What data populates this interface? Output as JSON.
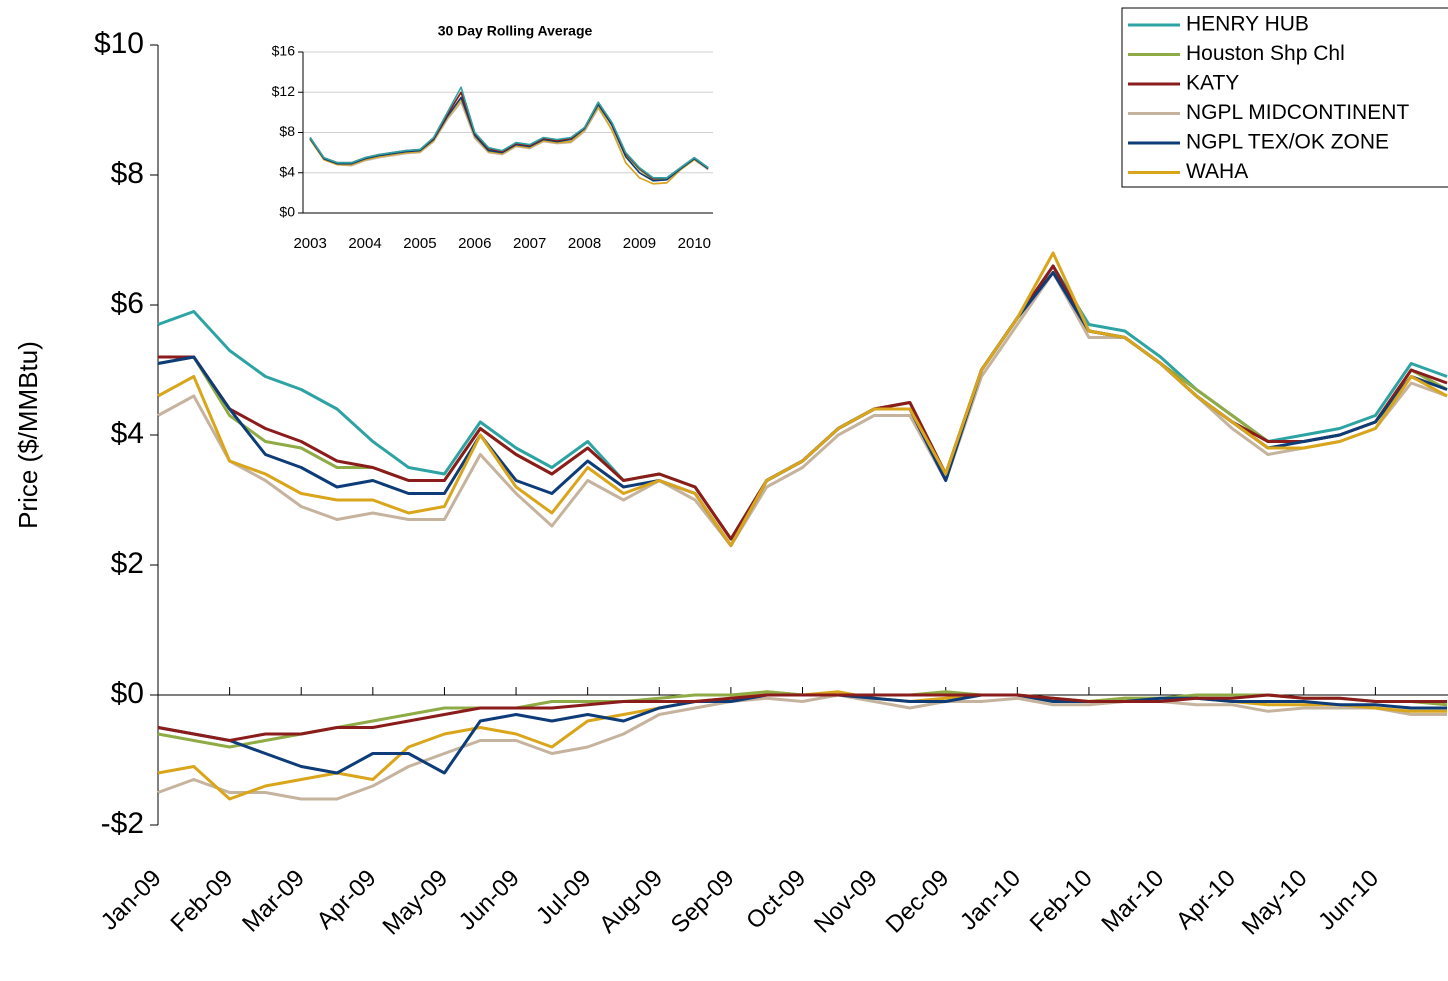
{
  "chart_data": [
    {
      "type": "line",
      "ylabel": "Price ($/MMBtu)",
      "categories": [
        "Jan-09",
        null,
        "Feb-09",
        null,
        "Mar-09",
        null,
        "Apr-09",
        null,
        "May-09",
        null,
        "Jun-09",
        null,
        "Jul-09",
        null,
        "Aug-09",
        null,
        "Sep-09",
        null,
        "Oct-09",
        null,
        "Nov-09",
        null,
        "Dec-09",
        null,
        "Jan-10",
        null,
        "Feb-10",
        null,
        "Mar-10",
        null,
        "Apr-10",
        null,
        "May-10",
        null,
        "Jun-10",
        null,
        null
      ],
      "ylim": [
        -2,
        10
      ],
      "yticks": [
        {
          "value": -2,
          "label": "-$2"
        },
        {
          "value": 0,
          "label": "$0"
        },
        {
          "value": 2,
          "label": "$2"
        },
        {
          "value": 4,
          "label": "$4"
        },
        {
          "value": 6,
          "label": "$6"
        },
        {
          "value": 8,
          "label": "$8"
        },
        {
          "value": 10,
          "label": "$10"
        }
      ],
      "legend": "upper right",
      "series": [
        {
          "name": "HENRY HUB",
          "color": "#2ea3a3",
          "values": [
            5.7,
            5.9,
            5.3,
            4.9,
            4.7,
            4.4,
            3.9,
            3.5,
            3.4,
            4.2,
            3.8,
            3.5,
            3.9,
            3.3,
            3.4,
            3.2,
            2.4,
            3.3,
            3.6,
            4.1,
            4.4,
            4.5,
            3.4,
            5.0,
            5.8,
            6.6,
            5.7,
            5.6,
            5.2,
            4.7,
            4.3,
            3.9,
            4.0,
            4.1,
            4.3,
            5.1,
            4.9
          ]
        },
        {
          "name": "Houston Shp Chl",
          "color": "#8fab45",
          "values": [
            5.1,
            5.2,
            4.3,
            3.9,
            3.8,
            3.5,
            3.5,
            3.3,
            3.3,
            4.1,
            3.7,
            3.4,
            3.8,
            3.3,
            3.4,
            3.2,
            2.4,
            3.3,
            3.6,
            4.1,
            4.4,
            4.5,
            3.4,
            5.0,
            5.8,
            6.5,
            5.6,
            5.5,
            5.1,
            4.7,
            4.3,
            3.9,
            3.9,
            4.0,
            4.2,
            5.0,
            4.7
          ]
        },
        {
          "name": "KATY",
          "color": "#8b1c1c",
          "values": [
            5.2,
            5.2,
            4.4,
            4.1,
            3.9,
            3.6,
            3.5,
            3.3,
            3.3,
            4.1,
            3.7,
            3.4,
            3.8,
            3.3,
            3.4,
            3.2,
            2.4,
            3.3,
            3.6,
            4.1,
            4.4,
            4.5,
            3.4,
            5.0,
            5.8,
            6.6,
            5.6,
            5.5,
            5.1,
            4.6,
            4.2,
            3.9,
            3.9,
            4.0,
            4.2,
            5.0,
            4.8
          ]
        },
        {
          "name": "NGPL MIDCONTINENT",
          "color": "#c5b39e",
          "values": [
            4.3,
            4.6,
            3.6,
            3.3,
            2.9,
            2.7,
            2.8,
            2.7,
            2.7,
            3.7,
            3.1,
            2.6,
            3.3,
            3.0,
            3.3,
            3.0,
            2.3,
            3.2,
            3.5,
            4.0,
            4.3,
            4.3,
            3.3,
            4.9,
            5.7,
            6.5,
            5.5,
            5.5,
            5.1,
            4.6,
            4.1,
            3.7,
            3.8,
            3.9,
            4.1,
            4.8,
            4.6
          ]
        },
        {
          "name": "NGPL TEX/OK ZONE",
          "color": "#0d3c78",
          "values": [
            5.1,
            5.2,
            4.4,
            3.7,
            3.5,
            3.2,
            3.3,
            3.1,
            3.1,
            4.0,
            3.3,
            3.1,
            3.6,
            3.2,
            3.3,
            3.1,
            2.3,
            3.3,
            3.6,
            4.1,
            4.4,
            4.4,
            3.3,
            5.0,
            5.8,
            6.5,
            5.6,
            5.5,
            5.1,
            4.6,
            4.2,
            3.8,
            3.9,
            4.0,
            4.2,
            4.9,
            4.7
          ]
        },
        {
          "name": "WAHA",
          "color": "#d9a51a",
          "values": [
            4.6,
            4.9,
            3.6,
            3.4,
            3.1,
            3.0,
            3.0,
            2.8,
            2.9,
            4.0,
            3.2,
            2.8,
            3.5,
            3.1,
            3.3,
            3.1,
            2.3,
            3.3,
            3.6,
            4.1,
            4.4,
            4.4,
            3.4,
            5.0,
            5.8,
            6.8,
            5.6,
            5.5,
            5.1,
            4.6,
            4.2,
            3.8,
            3.8,
            3.9,
            4.1,
            4.9,
            4.6
          ]
        }
      ],
      "basis_series": [
        {
          "color": "#c5b39e",
          "values": [
            -1.5,
            -1.3,
            -1.5,
            -1.5,
            -1.6,
            -1.6,
            -1.4,
            -1.1,
            -0.9,
            -0.7,
            -0.7,
            -0.9,
            -0.8,
            -0.6,
            -0.3,
            -0.2,
            -0.1,
            -0.05,
            -0.1,
            0,
            -0.1,
            -0.2,
            -0.1,
            -0.1,
            -0.05,
            -0.15,
            -0.15,
            -0.1,
            -0.1,
            -0.15,
            -0.15,
            -0.25,
            -0.2,
            -0.2,
            -0.2,
            -0.3,
            -0.3
          ]
        },
        {
          "color": "#d9a51a",
          "values": [
            -1.2,
            -1.1,
            -1.6,
            -1.4,
            -1.3,
            -1.2,
            -1.3,
            -0.8,
            -0.6,
            -0.5,
            -0.6,
            -0.8,
            -0.4,
            -0.3,
            -0.2,
            -0.1,
            -0.05,
            0.05,
            0,
            0.05,
            -0.05,
            -0.1,
            -0.05,
            0,
            0,
            -0.1,
            -0.1,
            -0.05,
            -0.05,
            -0.05,
            -0.1,
            -0.15,
            -0.15,
            -0.15,
            -0.2,
            -0.25,
            -0.25
          ]
        },
        {
          "color": "#8fab45",
          "values": [
            -0.6,
            -0.7,
            -0.8,
            -0.7,
            -0.6,
            -0.5,
            -0.4,
            -0.3,
            -0.2,
            -0.2,
            -0.2,
            -0.1,
            -0.1,
            -0.1,
            -0.05,
            0,
            0,
            0.05,
            0,
            0,
            0,
            0,
            0.05,
            0,
            0,
            -0.05,
            -0.1,
            -0.05,
            -0.05,
            0,
            0,
            0,
            -0.05,
            -0.05,
            -0.1,
            -0.1,
            -0.15
          ]
        },
        {
          "color": "#0d3c78",
          "values": [
            -0.5,
            -0.6,
            -0.7,
            -0.9,
            -1.1,
            -1.2,
            -0.9,
            -0.9,
            -1.2,
            -0.4,
            -0.3,
            -0.4,
            -0.3,
            -0.4,
            -0.2,
            -0.1,
            -0.1,
            0,
            0,
            0,
            -0.05,
            -0.1,
            -0.1,
            0,
            0,
            -0.1,
            -0.1,
            -0.1,
            -0.05,
            -0.05,
            -0.1,
            -0.1,
            -0.1,
            -0.15,
            -0.15,
            -0.2,
            -0.2
          ]
        },
        {
          "color": "#8b1c1c",
          "values": [
            -0.5,
            -0.6,
            -0.7,
            -0.6,
            -0.6,
            -0.5,
            -0.5,
            -0.4,
            -0.3,
            -0.2,
            -0.2,
            -0.2,
            -0.15,
            -0.1,
            -0.1,
            -0.1,
            -0.05,
            0,
            0,
            0,
            0,
            0,
            0,
            0,
            0,
            -0.05,
            -0.1,
            -0.1,
            -0.1,
            -0.05,
            -0.05,
            0,
            -0.05,
            -0.05,
            -0.1,
            -0.1,
            -0.1
          ]
        }
      ]
    },
    {
      "type": "line",
      "title": "30 Day Rolling Average",
      "x": [
        2003,
        2003.25,
        2003.5,
        2003.75,
        2004,
        2004.25,
        2004.5,
        2004.75,
        2005,
        2005.25,
        2005.5,
        2005.75,
        2006,
        2006.25,
        2006.5,
        2006.75,
        2007,
        2007.25,
        2007.5,
        2007.75,
        2008,
        2008.25,
        2008.5,
        2008.75,
        2009,
        2009.25,
        2009.5,
        2009.75,
        2010,
        2010.25
      ],
      "xlim": [
        2002.87,
        2010.34
      ],
      "xticks": [
        2003,
        2004,
        2005,
        2006,
        2007,
        2008,
        2009,
        2010
      ],
      "ylim": [
        0,
        16
      ],
      "yticks": [
        {
          "value": 0,
          "label": "$0"
        },
        {
          "value": 4,
          "label": "$4"
        },
        {
          "value": 8,
          "label": "$8"
        },
        {
          "value": 12,
          "label": "$12"
        },
        {
          "value": 16,
          "label": "$16"
        }
      ],
      "grid": true,
      "series": [
        {
          "color": "#c5b39e",
          "values": [
            7.3,
            5.3,
            4.8,
            4.7,
            5.2,
            5.5,
            5.7,
            5.9,
            6.0,
            7.1,
            9.3,
            11.0,
            7.4,
            6.0,
            5.8,
            6.6,
            6.4,
            7.1,
            6.9,
            7.0,
            8.1,
            10.4,
            8.3,
            5.0,
            3.5,
            2.9,
            3.0,
            4.3,
            5.3,
            4.3
          ]
        },
        {
          "color": "#d9a51a",
          "values": [
            7.3,
            5.3,
            4.8,
            4.8,
            5.3,
            5.6,
            5.8,
            6.0,
            6.1,
            7.2,
            9.5,
            11.3,
            7.6,
            6.1,
            5.9,
            6.7,
            6.5,
            7.2,
            7.0,
            7.1,
            8.3,
            10.6,
            8.2,
            5.0,
            3.5,
            2.9,
            3.0,
            4.3,
            5.3,
            4.4
          ]
        },
        {
          "color": "#8fab45",
          "values": [
            7.4,
            5.4,
            4.9,
            4.9,
            5.4,
            5.7,
            5.9,
            6.1,
            6.2,
            7.4,
            9.8,
            12.0,
            7.8,
            6.3,
            6.1,
            6.9,
            6.7,
            7.4,
            7.2,
            7.4,
            8.4,
            10.8,
            8.8,
            5.8,
            4.3,
            3.3,
            3.4,
            4.4,
            5.4,
            4.5
          ]
        },
        {
          "color": "#0d3c78",
          "values": [
            7.4,
            5.4,
            4.9,
            4.9,
            5.4,
            5.7,
            5.9,
            6.1,
            6.2,
            7.3,
            9.6,
            11.5,
            7.7,
            6.2,
            6.0,
            6.8,
            6.6,
            7.3,
            7.1,
            7.3,
            8.4,
            10.8,
            8.7,
            5.6,
            4.0,
            3.2,
            3.3,
            4.4,
            5.4,
            4.4
          ]
        },
        {
          "color": "#8b1c1c",
          "values": [
            7.5,
            5.5,
            5.0,
            5.0,
            5.5,
            5.8,
            6.0,
            6.2,
            6.3,
            7.4,
            9.8,
            12.0,
            7.9,
            6.4,
            6.1,
            6.9,
            6.7,
            7.4,
            7.2,
            7.4,
            8.5,
            11.0,
            8.9,
            5.9,
            4.4,
            3.4,
            3.5,
            4.5,
            5.5,
            4.5
          ]
        },
        {
          "color": "#2ea3a3",
          "values": [
            7.5,
            5.5,
            5.0,
            5.0,
            5.5,
            5.8,
            6.0,
            6.2,
            6.3,
            7.5,
            10.0,
            12.5,
            8.0,
            6.5,
            6.2,
            7.0,
            6.8,
            7.5,
            7.3,
            7.5,
            8.5,
            11.0,
            9.0,
            6.0,
            4.5,
            3.5,
            3.5,
            4.5,
            5.5,
            4.5
          ]
        }
      ]
    }
  ]
}
